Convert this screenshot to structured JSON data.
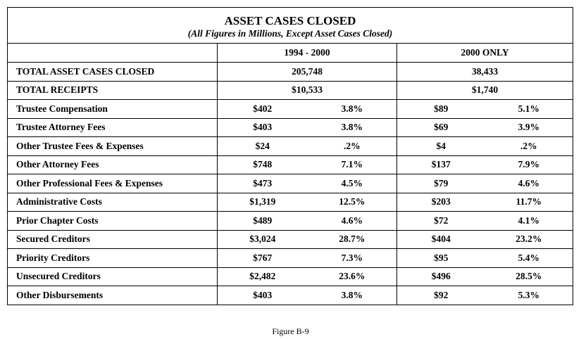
{
  "table": {
    "title": "ASSET CASES CLOSED",
    "subtitle": "(All Figures in Millions, Except Asset Cases Closed)",
    "period_a": "1994 - 2000",
    "period_b": "2000 ONLY",
    "totals": [
      {
        "label": "TOTAL ASSET CASES CLOSED",
        "a": "205,748",
        "b": "38,433"
      },
      {
        "label": "TOTAL RECEIPTS",
        "a": "$10,533",
        "b": "$1,740"
      }
    ],
    "rows": [
      {
        "label": "Trustee Compensation",
        "a_amt": "$402",
        "a_pct": "3.8%",
        "b_amt": "$89",
        "b_pct": "5.1%"
      },
      {
        "label": "Trustee Attorney Fees",
        "a_amt": "$403",
        "a_pct": "3.8%",
        "b_amt": "$69",
        "b_pct": "3.9%"
      },
      {
        "label": "Other Trustee Fees & Expenses",
        "a_amt": "$24",
        "a_pct": ".2%",
        "b_amt": "$4",
        "b_pct": ".2%"
      },
      {
        "label": "Other Attorney Fees",
        "a_amt": "$748",
        "a_pct": "7.1%",
        "b_amt": "$137",
        "b_pct": "7.9%"
      },
      {
        "label": "Other Professional Fees & Expenses",
        "a_amt": "$473",
        "a_pct": "4.5%",
        "b_amt": "$79",
        "b_pct": "4.6%"
      },
      {
        "label": "Administrative Costs",
        "a_amt": "$1,319",
        "a_pct": "12.5%",
        "b_amt": "$203",
        "b_pct": "11.7%"
      },
      {
        "label": "Prior Chapter Costs",
        "a_amt": "$489",
        "a_pct": "4.6%",
        "b_amt": "$72",
        "b_pct": "4.1%"
      },
      {
        "label": "Secured Creditors",
        "a_amt": "$3,024",
        "a_pct": "28.7%",
        "b_amt": "$404",
        "b_pct": "23.2%"
      },
      {
        "label": "Priority Creditors",
        "a_amt": "$767",
        "a_pct": "7.3%",
        "b_amt": "$95",
        "b_pct": "5.4%"
      },
      {
        "label": "Unsecured Creditors",
        "a_amt": "$2,482",
        "a_pct": "23.6%",
        "b_amt": "$496",
        "b_pct": "28.5%"
      },
      {
        "label": "Other Disbursements",
        "a_amt": "$403",
        "a_pct": "3.8%",
        "b_amt": "$92",
        "b_pct": "5.3%"
      }
    ]
  },
  "caption": "Figure B-9"
}
